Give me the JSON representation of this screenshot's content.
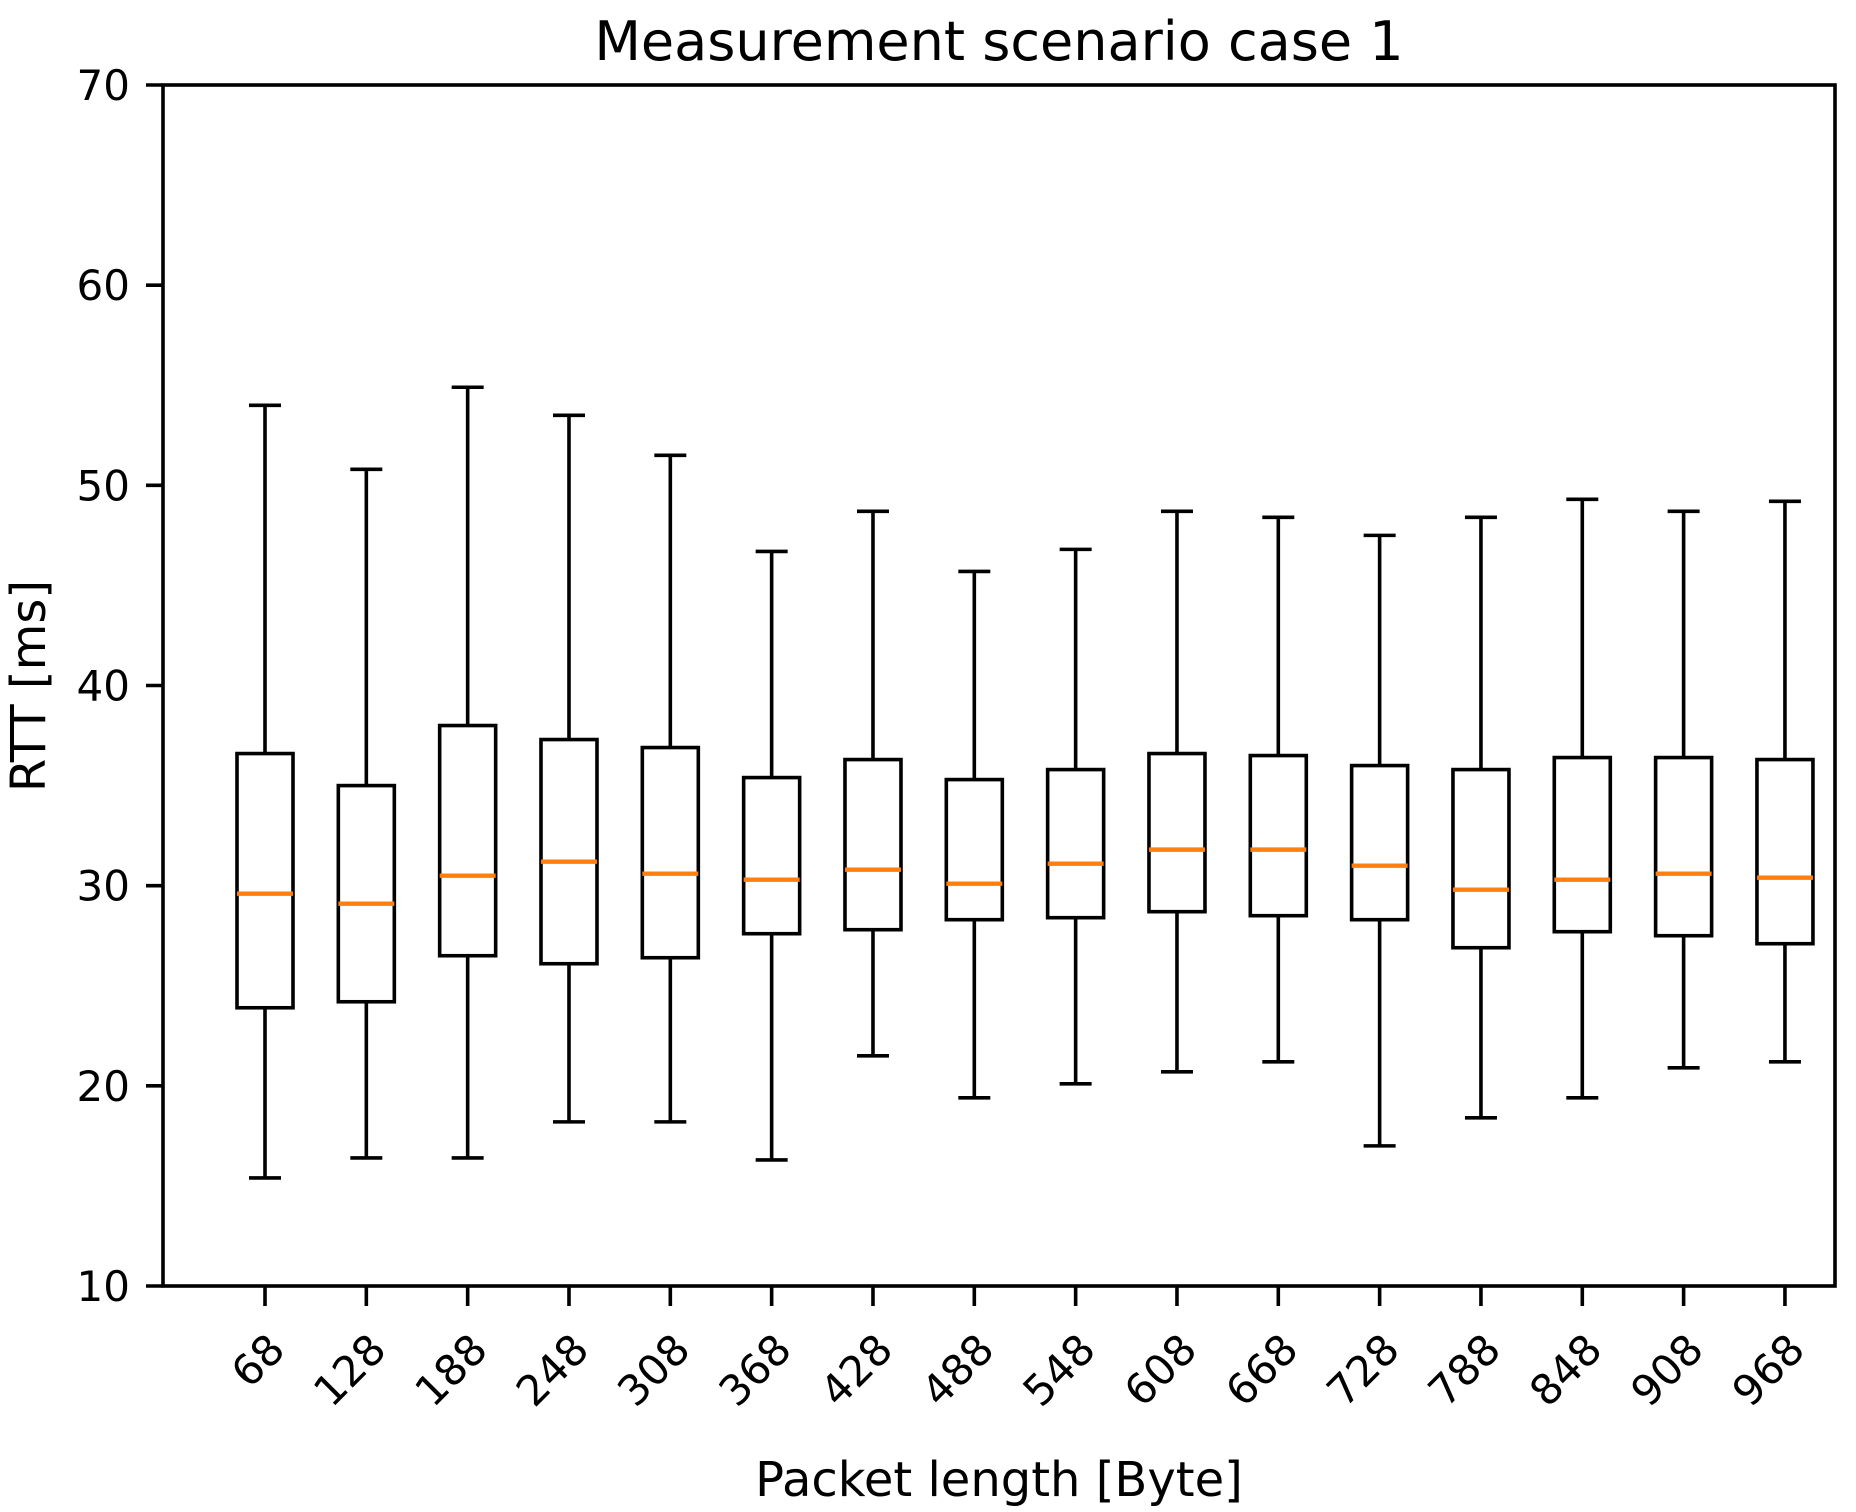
{
  "figure": {
    "background": "#ffffff"
  },
  "chart_data": {
    "type": "boxplot",
    "title": "Measurement scenario case 1",
    "xlabel": "Packet length [Byte]",
    "ylabel": "RTT [ms]",
    "ylim": [
      10,
      70
    ],
    "yticks": [
      10,
      20,
      30,
      40,
      50,
      60,
      70
    ],
    "xtick_rotation_deg": 45,
    "grid": false,
    "legend": "none",
    "categories": [
      "68",
      "128",
      "188",
      "248",
      "308",
      "368",
      "428",
      "488",
      "548",
      "608",
      "668",
      "728",
      "788",
      "848",
      "908",
      "968"
    ],
    "series": [
      {
        "category": "68",
        "whisker_low": 15.4,
        "q1": 23.9,
        "median": 29.6,
        "q3": 36.6,
        "whisker_high": 54.0
      },
      {
        "category": "128",
        "whisker_low": 16.4,
        "q1": 24.2,
        "median": 29.1,
        "q3": 35.0,
        "whisker_high": 50.8
      },
      {
        "category": "188",
        "whisker_low": 16.4,
        "q1": 26.5,
        "median": 30.5,
        "q3": 38.0,
        "whisker_high": 54.9
      },
      {
        "category": "248",
        "whisker_low": 18.2,
        "q1": 26.1,
        "median": 31.2,
        "q3": 37.3,
        "whisker_high": 53.5
      },
      {
        "category": "308",
        "whisker_low": 18.2,
        "q1": 26.4,
        "median": 30.6,
        "q3": 36.9,
        "whisker_high": 51.5
      },
      {
        "category": "368",
        "whisker_low": 16.3,
        "q1": 27.6,
        "median": 30.3,
        "q3": 35.4,
        "whisker_high": 46.7
      },
      {
        "category": "428",
        "whisker_low": 21.5,
        "q1": 27.8,
        "median": 30.8,
        "q3": 36.3,
        "whisker_high": 48.7
      },
      {
        "category": "488",
        "whisker_low": 19.4,
        "q1": 28.3,
        "median": 30.1,
        "q3": 35.3,
        "whisker_high": 45.7
      },
      {
        "category": "548",
        "whisker_low": 20.1,
        "q1": 28.4,
        "median": 31.1,
        "q3": 35.8,
        "whisker_high": 46.8
      },
      {
        "category": "608",
        "whisker_low": 20.7,
        "q1": 28.7,
        "median": 31.8,
        "q3": 36.6,
        "whisker_high": 48.7
      },
      {
        "category": "668",
        "whisker_low": 21.2,
        "q1": 28.5,
        "median": 31.8,
        "q3": 36.5,
        "whisker_high": 48.4
      },
      {
        "category": "728",
        "whisker_low": 17.0,
        "q1": 28.3,
        "median": 31.0,
        "q3": 36.0,
        "whisker_high": 47.5
      },
      {
        "category": "788",
        "whisker_low": 18.4,
        "q1": 26.9,
        "median": 29.8,
        "q3": 35.8,
        "whisker_high": 48.4
      },
      {
        "category": "848",
        "whisker_low": 19.4,
        "q1": 27.7,
        "median": 30.3,
        "q3": 36.4,
        "whisker_high": 49.3
      },
      {
        "category": "908",
        "whisker_low": 20.9,
        "q1": 27.5,
        "median": 30.6,
        "q3": 36.4,
        "whisker_high": 48.7
      },
      {
        "category": "968",
        "whisker_low": 21.2,
        "q1": 27.1,
        "median": 30.4,
        "q3": 36.3,
        "whisker_high": 49.2
      }
    ],
    "colors": {
      "box_stroke": "#000000",
      "median": "#ff7f0e",
      "box_fill": "#ffffff",
      "axis": "#000000",
      "text": "#000000",
      "background": "#ffffff"
    }
  }
}
